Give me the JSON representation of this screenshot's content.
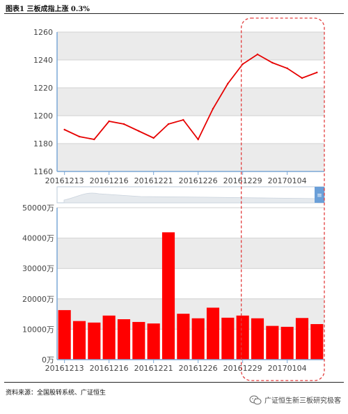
{
  "figure": {
    "title": "图表1 三板成指上涨 0.3%",
    "source": "资料来源：全国股转系统、广证恒生",
    "watermark": "广证恒生新三板研究极客"
  },
  "chart_data": [
    {
      "type": "line",
      "title": "",
      "x": [
        "20161213",
        "20161214",
        "20161215",
        "20161216",
        "20161219",
        "20161220",
        "20161221",
        "20161222",
        "20161223",
        "20161226",
        "20161227",
        "20161228",
        "20161229",
        "20161230",
        "20170103",
        "20170104",
        "20170105",
        "20170106"
      ],
      "series": [
        {
          "values": [
            1190,
            1185,
            1183,
            1196,
            1194,
            1189,
            1184,
            1194,
            1197,
            1183,
            1205,
            1223,
            1237,
            1244,
            1238,
            1234,
            1227,
            1231
          ]
        }
      ],
      "xticks": [
        "20161213",
        "20161216",
        "20161221",
        "20161226",
        "20161229",
        "20170104"
      ],
      "yticks": [
        1160,
        1180,
        1200,
        1220,
        1240,
        1260
      ],
      "ylim": [
        1160,
        1260
      ],
      "xlabel": "",
      "ylabel": "",
      "grid": true,
      "line_color": "#e60000"
    },
    {
      "type": "bar",
      "title": "",
      "x": [
        "20161213",
        "20161214",
        "20161215",
        "20161216",
        "20161219",
        "20161220",
        "20161221",
        "20161222",
        "20161223",
        "20161226",
        "20161227",
        "20161228",
        "20161229",
        "20161230",
        "20170103",
        "20170104",
        "20170105",
        "20170106"
      ],
      "series": [
        {
          "values": [
            16300,
            12700,
            12200,
            14500,
            13300,
            12400,
            11900,
            41900,
            15100,
            13600,
            17100,
            13800,
            14500,
            13600,
            11100,
            10800,
            13700,
            11700
          ]
        }
      ],
      "xticks": [
        "20161213",
        "20161216",
        "20161221",
        "20161226",
        "20161229",
        "20170104"
      ],
      "yticks": [
        "0万",
        "10000万",
        "20000万",
        "30000万",
        "40000万",
        "50000万"
      ],
      "ylim": [
        0,
        50000
      ],
      "xlabel": "",
      "ylabel": "",
      "grid": true,
      "bar_color": "#ff0000"
    }
  ],
  "colors": {
    "line": "#e60000",
    "bar": "#ff0000",
    "axis": "#7aa7d6",
    "band_gray": "#ebebeb",
    "highlight_box": "#e23c3c",
    "navigator_handle": "#6a9fd8"
  }
}
